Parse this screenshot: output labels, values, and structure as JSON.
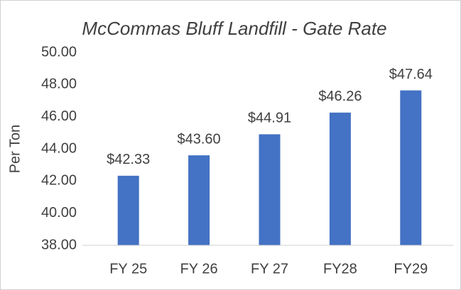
{
  "chart_data": {
    "type": "bar",
    "title": "McCommas Bluff Landfill - Gate Rate",
    "y_label": "Per Ton",
    "categories": [
      "FY 25",
      "FY 26",
      "FY 27",
      "FY28",
      "FY29"
    ],
    "values": [
      42.33,
      43.6,
      44.91,
      46.26,
      47.64
    ],
    "value_labels": [
      "$42.33",
      "$43.60",
      "$44.91",
      "$46.26",
      "$47.64"
    ],
    "color": "#4472c4",
    "ylim": [
      38,
      50
    ],
    "yticks": [
      {
        "value": 38,
        "label": "38.00"
      },
      {
        "value": 40,
        "label": "40.00"
      },
      {
        "value": 42,
        "label": "42.00"
      },
      {
        "value": 44,
        "label": "44.00"
      },
      {
        "value": 46,
        "label": "46.00"
      },
      {
        "value": 48,
        "label": "48.00"
      },
      {
        "value": 50,
        "label": "50.00"
      }
    ],
    "grid": false
  }
}
